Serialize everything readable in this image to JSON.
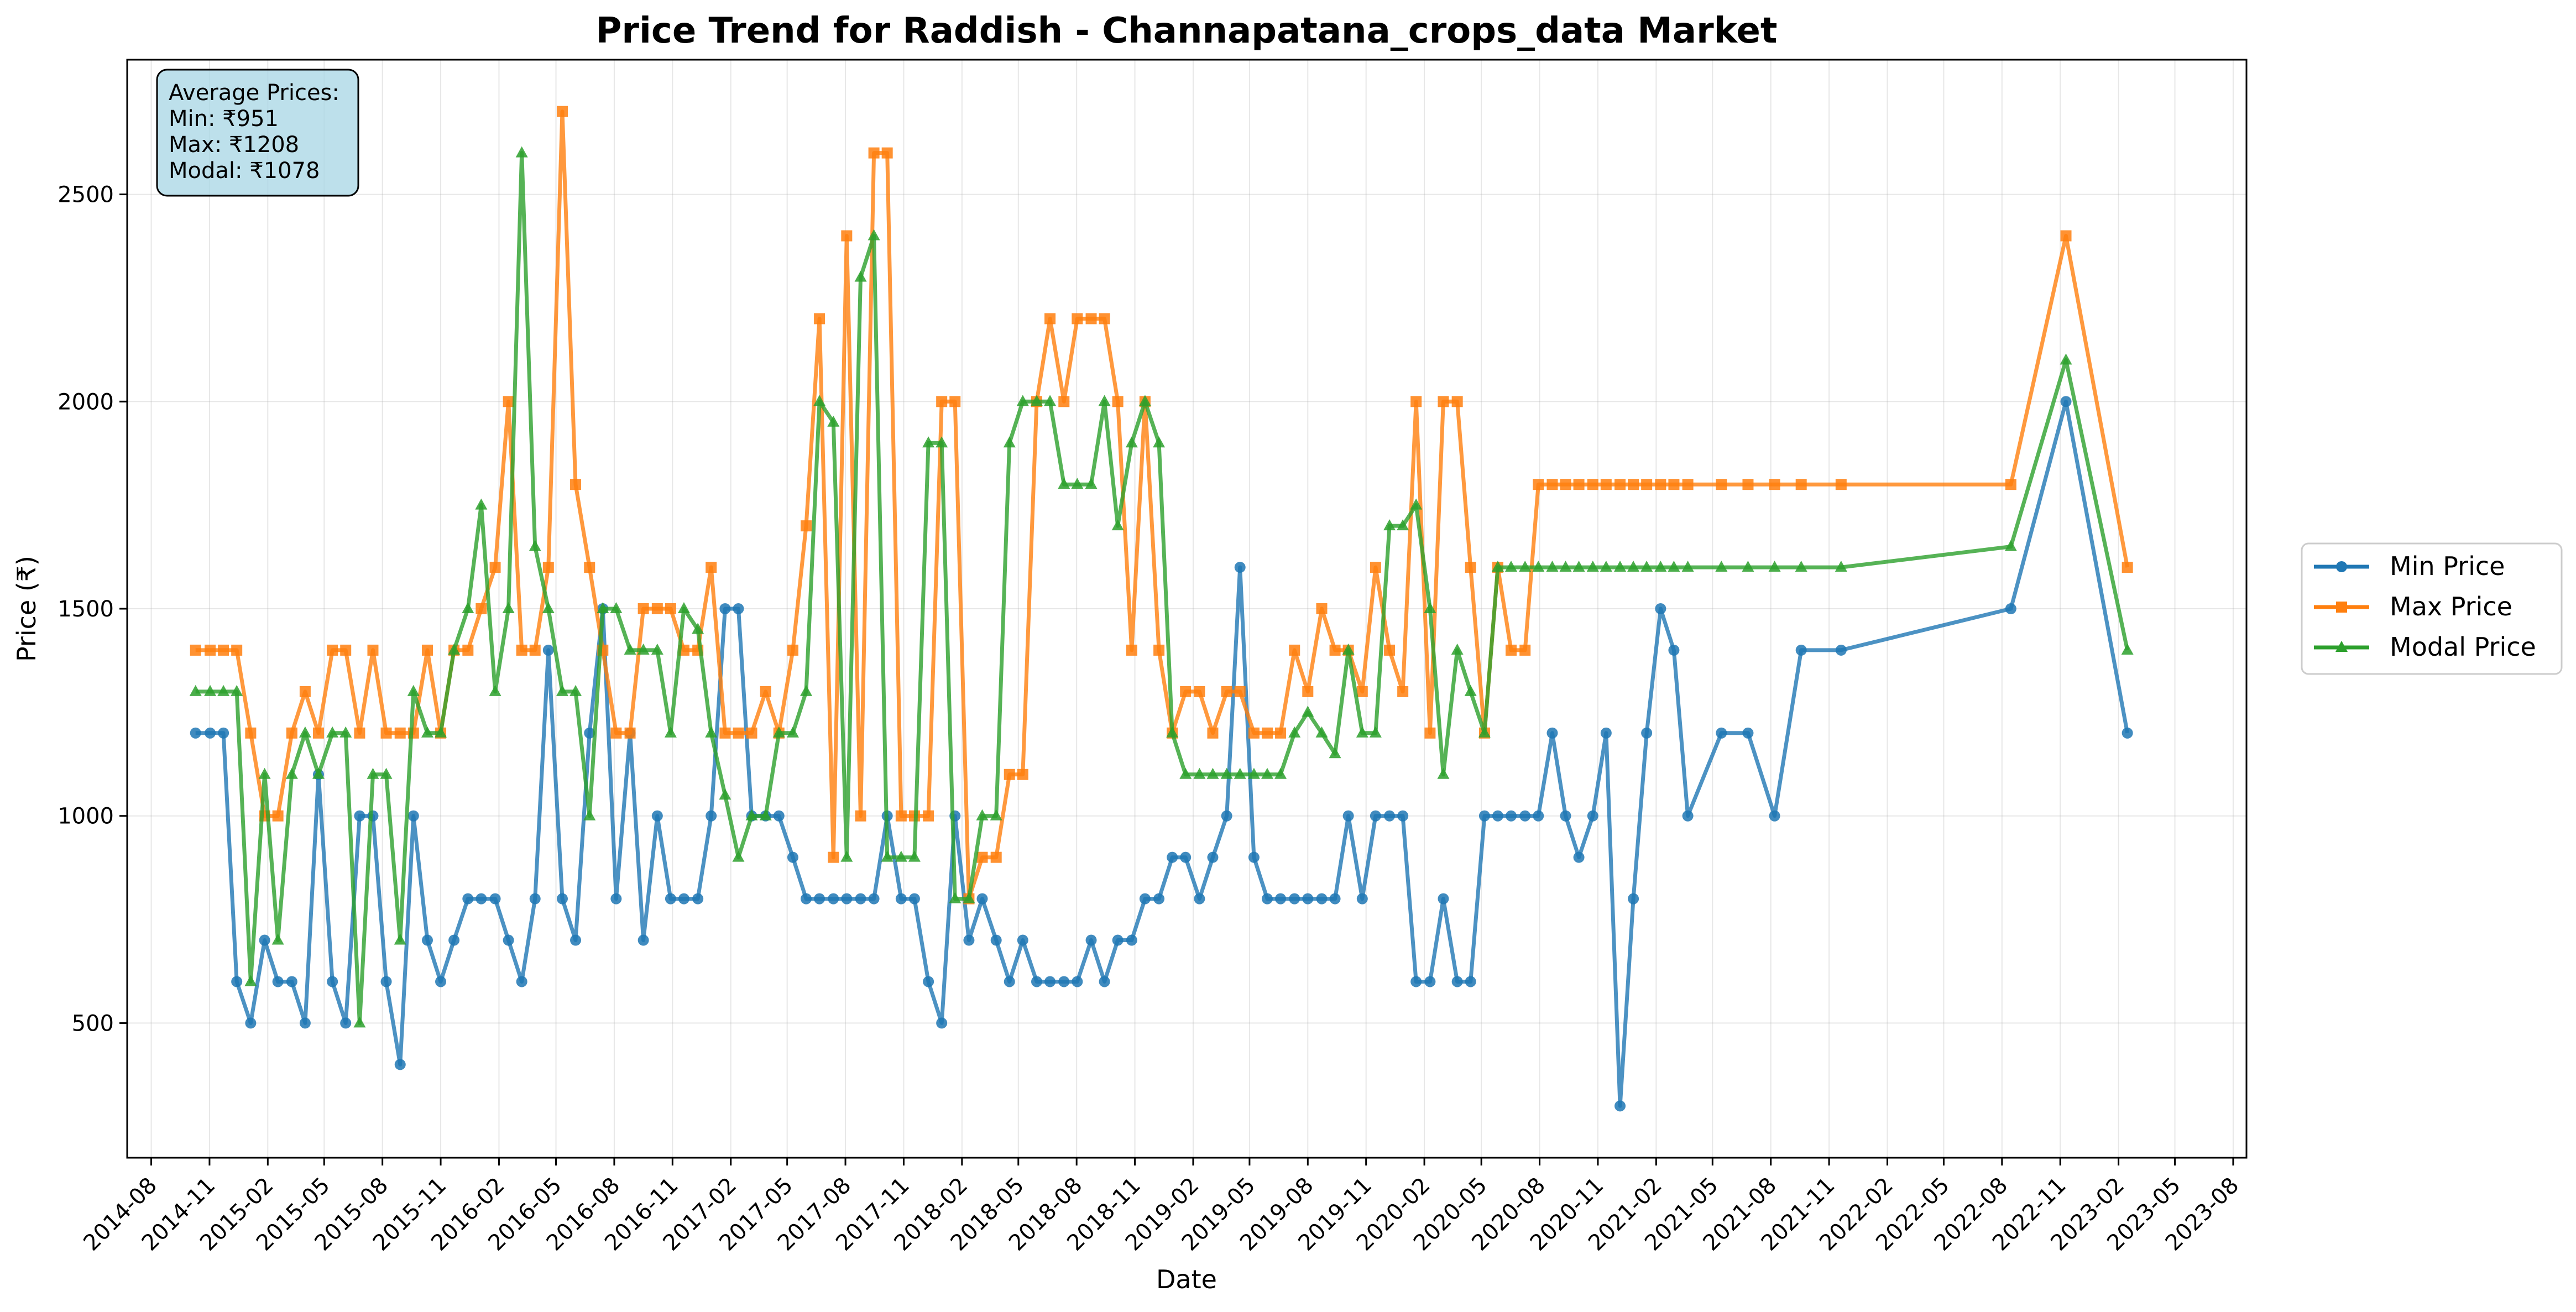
{
  "chart_data": {
    "type": "line",
    "title": "Price Trend for Raddish - Channapatana_crops_data Market",
    "xlabel": "Date",
    "ylabel": "Price (₹)",
    "xlim": [
      "2014-06-24",
      "2023-08-22"
    ],
    "ylim": [
      175,
      2825
    ],
    "grid": true,
    "legend_position": "center-right outside",
    "x_ticks": [
      "2014-08",
      "2014-11",
      "2015-02",
      "2015-05",
      "2015-08",
      "2015-11",
      "2016-02",
      "2016-05",
      "2016-08",
      "2016-11",
      "2017-02",
      "2017-05",
      "2017-08",
      "2017-11",
      "2018-02",
      "2018-05",
      "2018-08",
      "2018-11",
      "2019-02",
      "2019-05",
      "2019-08",
      "2019-11",
      "2020-02",
      "2020-05",
      "2020-08",
      "2020-11",
      "2021-02",
      "2021-05",
      "2021-08",
      "2021-11",
      "2022-02",
      "2022-05",
      "2022-08",
      "2022-11",
      "2023-02",
      "2023-05",
      "2023-08"
    ],
    "y_ticks": [
      500,
      1000,
      1500,
      2000,
      2500
    ],
    "stats_box": {
      "heading": "Average Prices:",
      "min": "Min: ₹951",
      "max": "Max: ₹1208",
      "modal": "Modal: ₹1078"
    },
    "x": [
      "2014-10-10",
      "2014-11-02",
      "2014-11-23",
      "2014-12-14",
      "2015-01-05",
      "2015-01-27",
      "2015-02-17",
      "2015-03-11",
      "2015-04-01",
      "2015-04-22",
      "2015-05-14",
      "2015-06-04",
      "2015-06-26",
      "2015-07-17",
      "2015-08-07",
      "2015-08-29",
      "2015-09-19",
      "2015-10-11",
      "2015-11-01",
      "2015-11-22",
      "2015-12-14",
      "2016-01-04",
      "2016-01-26",
      "2016-02-16",
      "2016-03-08",
      "2016-03-29",
      "2016-04-19",
      "2016-05-11",
      "2016-06-01",
      "2016-06-23",
      "2016-07-14",
      "2016-08-04",
      "2016-08-26",
      "2016-09-16",
      "2016-10-08",
      "2016-10-29",
      "2016-11-19",
      "2016-12-11",
      "2017-01-01",
      "2017-01-23",
      "2017-02-13",
      "2017-03-06",
      "2017-03-28",
      "2017-04-18",
      "2017-05-10",
      "2017-05-31",
      "2017-06-21",
      "2017-07-13",
      "2017-08-03",
      "2017-08-25",
      "2017-09-15",
      "2017-10-06",
      "2017-10-28",
      "2017-11-18",
      "2017-12-10",
      "2017-12-31",
      "2018-01-21",
      "2018-02-12",
      "2018-03-05",
      "2018-03-27",
      "2018-04-17",
      "2018-05-08",
      "2018-05-30",
      "2018-06-20",
      "2018-07-12",
      "2018-08-02",
      "2018-08-24",
      "2018-09-14",
      "2018-10-05",
      "2018-10-27",
      "2018-11-17",
      "2018-12-09",
      "2018-12-30",
      "2019-01-20",
      "2019-02-11",
      "2019-03-04",
      "2019-03-26",
      "2019-04-16",
      "2019-05-08",
      "2019-05-29",
      "2019-06-19",
      "2019-07-11",
      "2019-08-01",
      "2019-08-23",
      "2019-09-13",
      "2019-10-04",
      "2019-10-26",
      "2019-11-16",
      "2019-12-08",
      "2019-12-29",
      "2020-01-19",
      "2020-02-10",
      "2020-03-02",
      "2020-03-24",
      "2020-04-14",
      "2020-05-06",
      "2020-05-27",
      "2020-06-17",
      "2020-07-09",
      "2020-07-30",
      "2020-08-21",
      "2020-09-11",
      "2020-10-02",
      "2020-10-24",
      "2020-11-14",
      "2020-12-06",
      "2020-12-27",
      "2021-01-17",
      "2021-02-08",
      "2021-03-01",
      "2021-03-23",
      "2021-05-15",
      "2021-06-26",
      "2021-08-07",
      "2021-09-18",
      "2021-11-20",
      "2022-08-15",
      "2022-11-10",
      "2023-02-15"
    ],
    "series": [
      {
        "name": "Min Price",
        "color": "#1f77b4",
        "marker": "circle",
        "values": [
          1200,
          1200,
          1200,
          600,
          500,
          700,
          600,
          600,
          500,
          1100,
          600,
          500,
          1000,
          1000,
          600,
          400,
          1000,
          700,
          600,
          700,
          800,
          800,
          800,
          700,
          600,
          800,
          1400,
          800,
          700,
          1200,
          1500,
          800,
          1200,
          700,
          1000,
          800,
          800,
          800,
          1000,
          1500,
          1500,
          1000,
          1000,
          1000,
          900,
          800,
          800,
          800,
          800,
          800,
          800,
          1000,
          800,
          800,
          600,
          500,
          1000,
          700,
          800,
          700,
          600,
          700,
          600,
          600,
          600,
          600,
          700,
          600,
          700,
          700,
          800,
          800,
          900,
          900,
          800,
          900,
          1000,
          1600,
          900,
          800,
          800,
          800,
          800,
          800,
          800,
          1000,
          800,
          1000,
          1000,
          1000,
          600,
          600,
          800,
          600,
          600,
          1000,
          1000,
          1000,
          1000,
          1000,
          1200,
          1000,
          900,
          1000,
          1200,
          300,
          800,
          1200,
          1500,
          1400,
          1000,
          1200,
          1200,
          1000,
          1400,
          1400,
          1500,
          2000,
          1200
        ]
      },
      {
        "name": "Max Price",
        "color": "#ff7f0e",
        "marker": "square",
        "values": [
          1400,
          1400,
          1400,
          1400,
          1200,
          1000,
          1000,
          1200,
          1300,
          1200,
          1400,
          1400,
          1200,
          1400,
          1200,
          1200,
          1200,
          1400,
          1200,
          1400,
          1400,
          1500,
          1600,
          2000,
          1400,
          1400,
          1600,
          2700,
          1800,
          1600,
          1400,
          1200,
          1200,
          1500,
          1500,
          1500,
          1400,
          1400,
          1600,
          1200,
          1200,
          1200,
          1300,
          1200,
          1400,
          1700,
          2200,
          900,
          2400,
          1000,
          2600,
          2600,
          1000,
          1000,
          1000,
          2000,
          2000,
          800,
          900,
          900,
          1100,
          1100,
          2000,
          2200,
          2000,
          2200,
          2200,
          2200,
          2000,
          1400,
          2000,
          1400,
          1200,
          1300,
          1300,
          1200,
          1300,
          1300,
          1200,
          1200,
          1200,
          1400,
          1300,
          1500,
          1400,
          1400,
          1300,
          1600,
          1400,
          1300,
          2000,
          1200,
          2000,
          2000,
          1600,
          1200,
          1600,
          1400,
          1400,
          1800,
          1800,
          1800,
          1800,
          1800,
          1800,
          1800,
          1800,
          1800,
          1800,
          1800,
          1800,
          1800,
          1800,
          1800,
          1800,
          1800,
          1800,
          2400,
          1600
        ]
      },
      {
        "name": "Modal Price",
        "color": "#2ca02c",
        "marker": "triangle",
        "values": [
          1300,
          1300,
          1300,
          1300,
          600,
          1100,
          700,
          1100,
          1200,
          1100,
          1200,
          1200,
          500,
          1100,
          1100,
          700,
          1300,
          1200,
          1200,
          1400,
          1500,
          1750,
          1300,
          1500,
          2600,
          1650,
          1500,
          1300,
          1300,
          1000,
          1500,
          1500,
          1400,
          1400,
          1400,
          1200,
          1500,
          1450,
          1200,
          1050,
          900,
          1000,
          1000,
          1200,
          1200,
          1300,
          2000,
          1950,
          900,
          2300,
          2400,
          900,
          900,
          900,
          1900,
          1900,
          800,
          800,
          1000,
          1000,
          1900,
          2000,
          2000,
          2000,
          1800,
          1800,
          1800,
          2000,
          1700,
          1900,
          2000,
          1900,
          1200,
          1100,
          1100,
          1100,
          1100,
          1100,
          1100,
          1100,
          1100,
          1200,
          1250,
          1200,
          1150,
          1400,
          1200,
          1200,
          1700,
          1700,
          1750,
          1500,
          1100,
          1400,
          1300,
          1200,
          1600,
          1600,
          1600,
          1600,
          1600,
          1600,
          1600,
          1600,
          1600,
          1600,
          1600,
          1600,
          1600,
          1600,
          1600,
          1600,
          1600,
          1600,
          1600,
          1600,
          1650,
          2100,
          1400
        ]
      }
    ]
  }
}
